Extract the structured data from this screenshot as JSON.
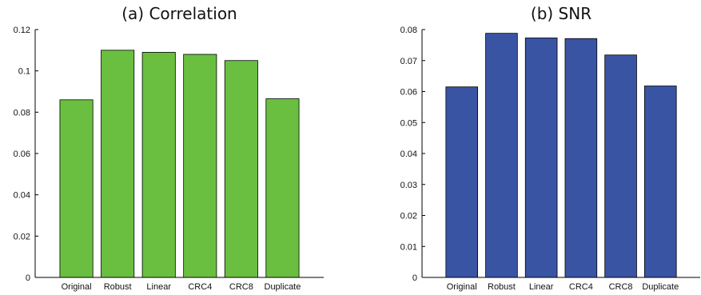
{
  "chart_data": [
    {
      "type": "bar",
      "title": "(a) Correlation",
      "xlabel": "",
      "ylabel": "",
      "categories": [
        "Original",
        "Robust",
        "Linear",
        "CRC4",
        "CRC8",
        "Duplicate"
      ],
      "values": [
        0.086,
        0.11,
        0.109,
        0.108,
        0.105,
        0.0865
      ],
      "ylim": [
        0,
        0.12
      ],
      "yticks": [
        0,
        0.02,
        0.04,
        0.06,
        0.08,
        0.1,
        0.12
      ],
      "ytick_labels": [
        "0",
        "0.02",
        "0.04",
        "0.06",
        "0.08",
        "0.1",
        "0.12"
      ],
      "bar_color": "#6abf40",
      "grid": false
    },
    {
      "type": "bar",
      "title": "(b) SNR",
      "xlabel": "",
      "ylabel": "",
      "categories": [
        "Original",
        "Robust",
        "Linear",
        "CRC4",
        "CRC8",
        "Duplicate"
      ],
      "values": [
        0.0615,
        0.0788,
        0.0773,
        0.0771,
        0.0718,
        0.0618
      ],
      "ylim": [
        0,
        0.08
      ],
      "yticks": [
        0,
        0.01,
        0.02,
        0.03,
        0.04,
        0.05,
        0.06,
        0.07,
        0.08
      ],
      "ytick_labels": [
        "0",
        "0.01",
        "0.02",
        "0.03",
        "0.04",
        "0.05",
        "0.06",
        "0.07",
        "0.08"
      ],
      "bar_color": "#3a54a4",
      "grid": false
    }
  ]
}
